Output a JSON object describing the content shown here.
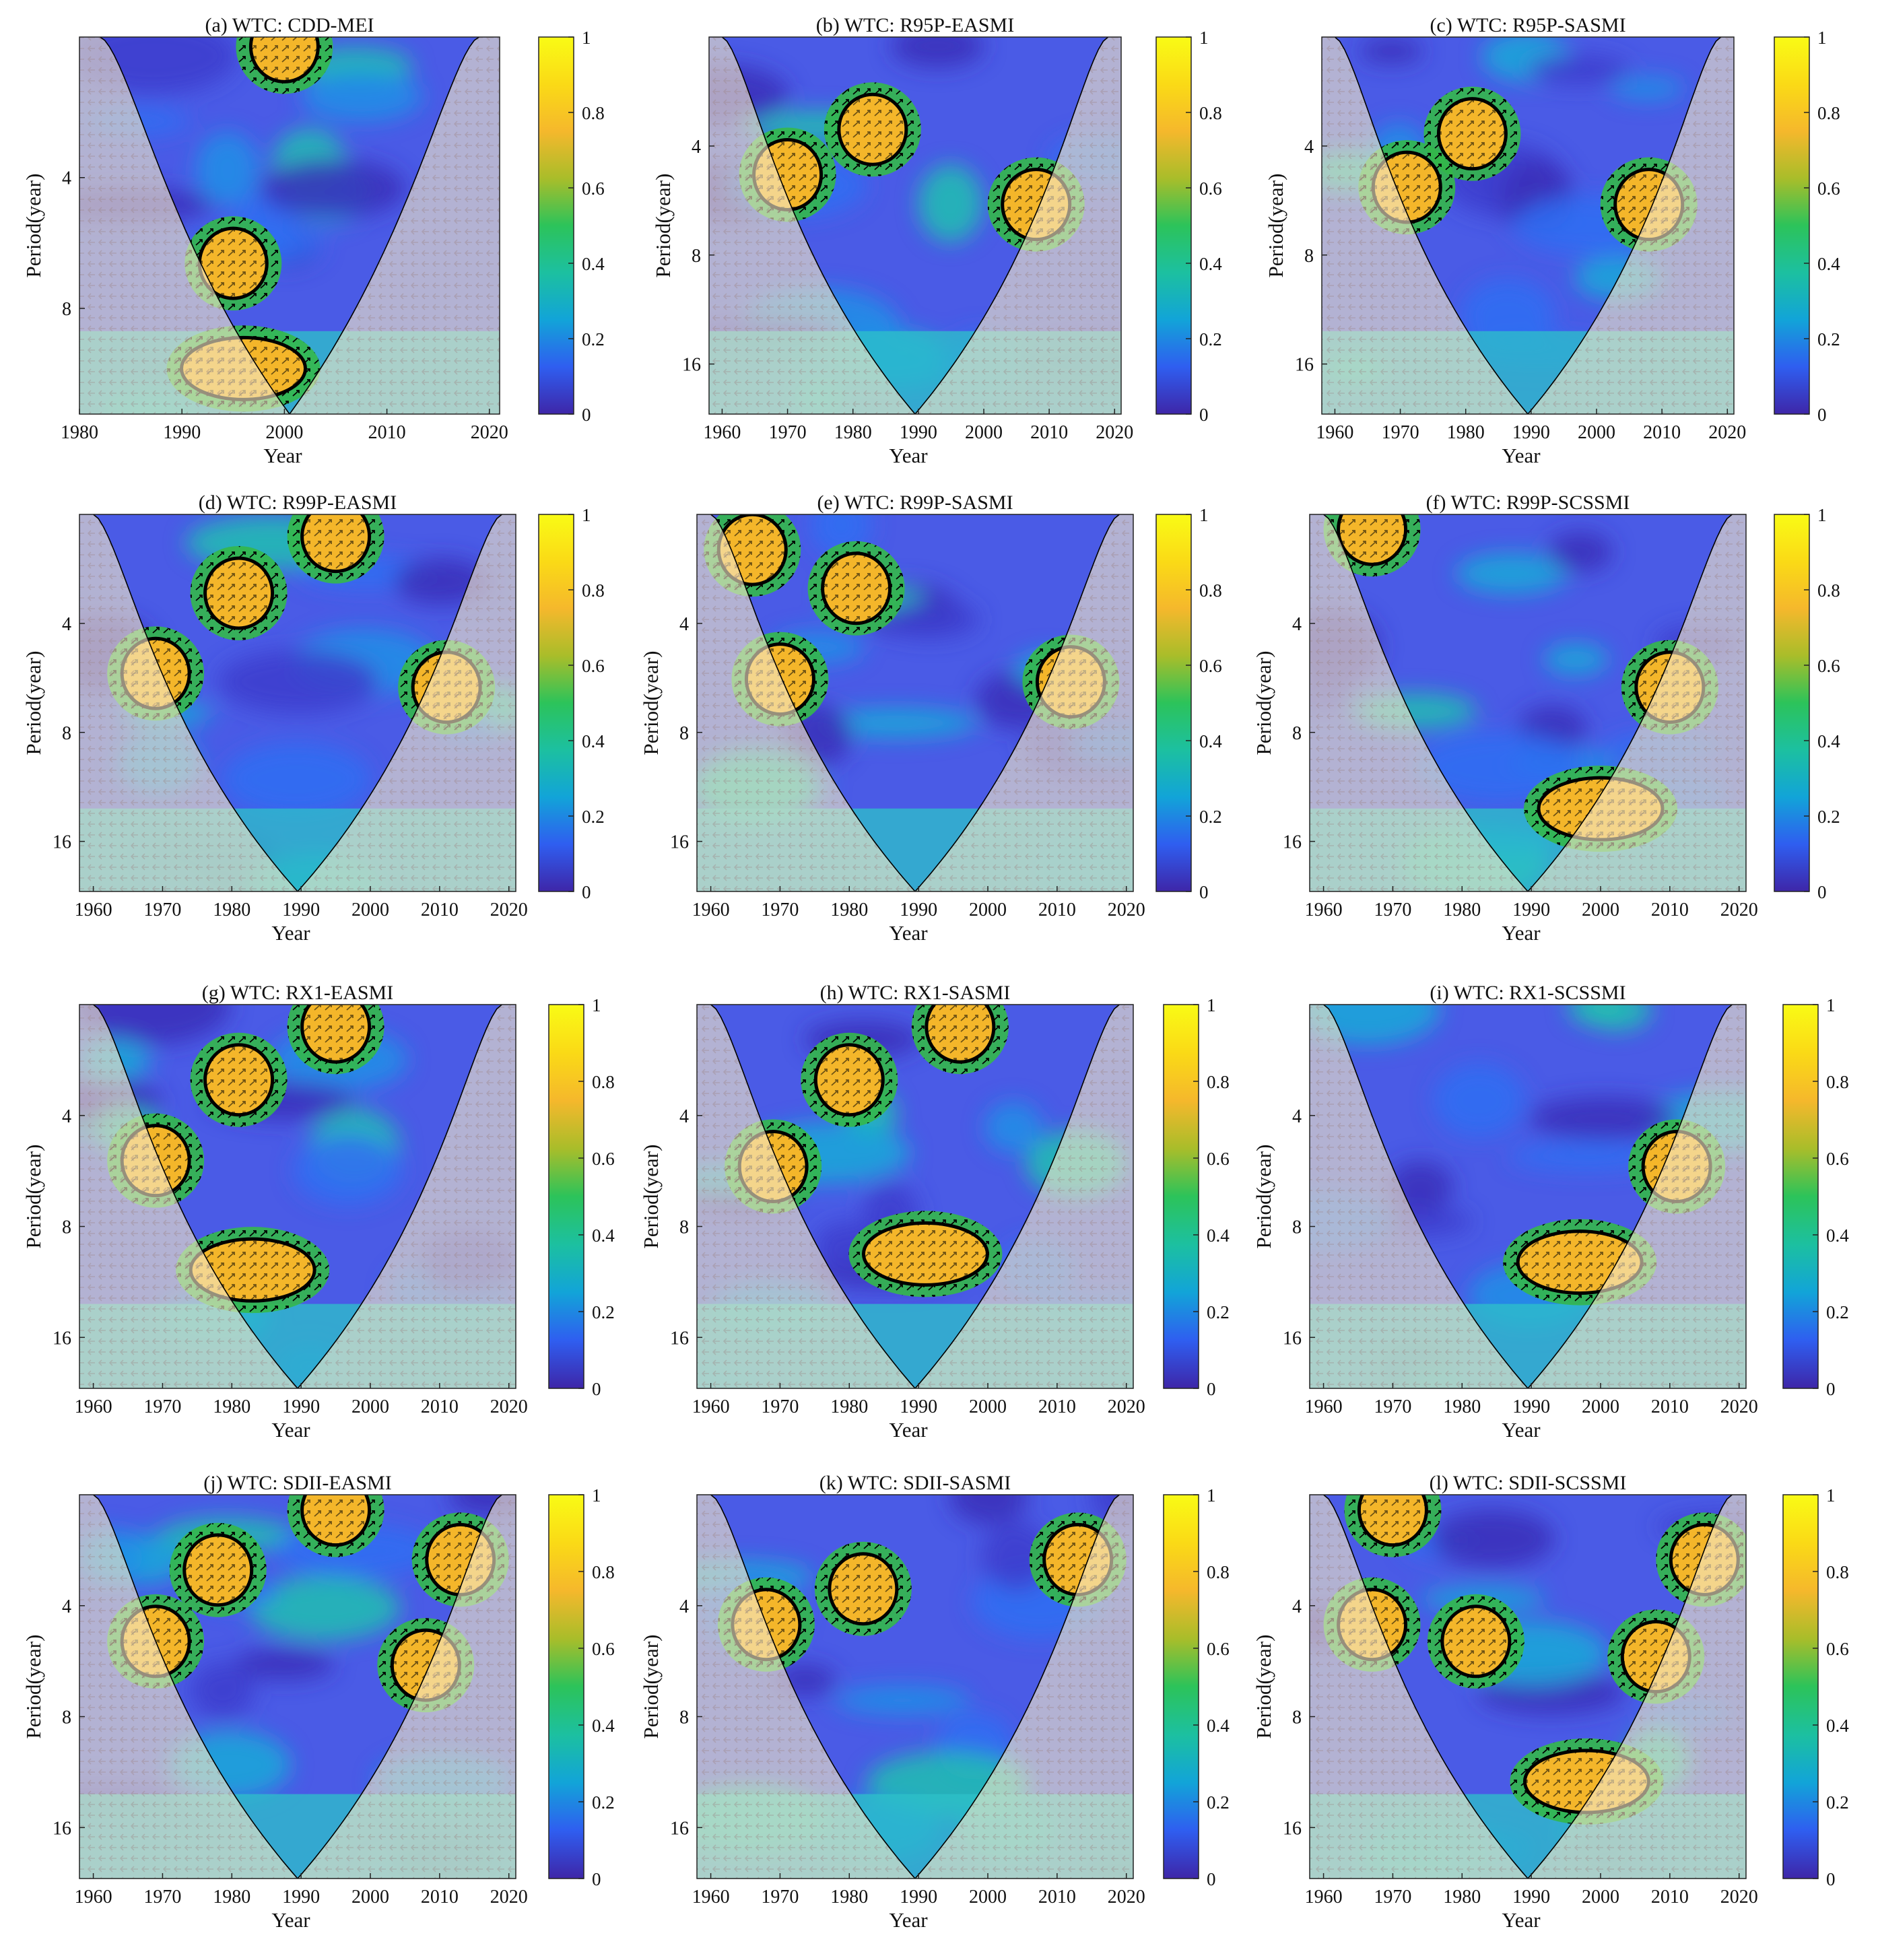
{
  "figure": {
    "colorbar_ticks": [
      "0",
      "0.2",
      "0.4",
      "0.6",
      "0.8",
      "1"
    ],
    "colormap": [
      "#3e26a8",
      "#2f5ef0",
      "#12a4d8",
      "#1cc0a0",
      "#2cc35a",
      "#a9bd2a",
      "#f5b82c",
      "#fada16",
      "#f9fb15"
    ],
    "coi_shade_color": "#f3e9c6",
    "significance_contour_color": "#000000",
    "coi_contour_color": "#888888"
  },
  "chart_data": [
    {
      "id": "a",
      "type": "heatmap",
      "title": "(a) WTC: CDD-MEI",
      "xlabel": "Year",
      "ylabel": "Period(year)",
      "xlim": [
        1980,
        2021
      ],
      "xticks": [
        "1980",
        "1990",
        "2000",
        "2010",
        "2020"
      ],
      "yticks": [
        "4",
        "8"
      ],
      "ylim_period": [
        1.9,
        14
      ],
      "clim": [
        0,
        1
      ],
      "significant_regions": [
        {
          "year": 1995,
          "period": 6.3
        },
        {
          "year": 1996,
          "period": 11
        },
        {
          "year": 2000,
          "period": 2
        }
      ]
    },
    {
      "id": "b",
      "type": "heatmap",
      "title": "(b) WTC: R95P-EASMI",
      "xlabel": "Year",
      "ylabel": "Period(year)",
      "xlim": [
        1958,
        2021
      ],
      "xticks": [
        "1960",
        "1970",
        "1980",
        "1990",
        "2000",
        "2010",
        "2020"
      ],
      "yticks": [
        "4",
        "8",
        "16"
      ],
      "ylim_period": [
        2,
        22
      ],
      "clim": [
        0,
        1
      ],
      "significant_regions": [
        {
          "year": 1970,
          "period": 4.8
        },
        {
          "year": 1983,
          "period": 3.6
        },
        {
          "year": 2008,
          "period": 5.8
        }
      ]
    },
    {
      "id": "c",
      "type": "heatmap",
      "title": "(c) WTC: R95P-SASMI",
      "xlabel": "Year",
      "ylabel": "Period(year)",
      "xlim": [
        1958,
        2021
      ],
      "xticks": [
        "1960",
        "1970",
        "1980",
        "1990",
        "2000",
        "2010",
        "2020"
      ],
      "yticks": [
        "4",
        "8",
        "16"
      ],
      "ylim_period": [
        2,
        22
      ],
      "clim": [
        0,
        1
      ],
      "significant_regions": [
        {
          "year": 1971,
          "period": 5.2
        },
        {
          "year": 1981,
          "period": 3.7
        },
        {
          "year": 2008,
          "period": 5.8
        }
      ]
    },
    {
      "id": "d",
      "type": "heatmap",
      "title": "(d) WTC: R99P-EASMI",
      "xlabel": "Year",
      "ylabel": "Period(year)",
      "xlim": [
        1958,
        2021
      ],
      "xticks": [
        "1960",
        "1970",
        "1980",
        "1990",
        "2000",
        "2010",
        "2020"
      ],
      "yticks": [
        "4",
        "8",
        "16"
      ],
      "ylim_period": [
        2,
        22
      ],
      "clim": [
        0,
        1
      ],
      "significant_regions": [
        {
          "year": 1969,
          "period": 5.5
        },
        {
          "year": 1981,
          "period": 3.3
        },
        {
          "year": 1995,
          "period": 2.3
        },
        {
          "year": 2011,
          "period": 6
        }
      ]
    },
    {
      "id": "e",
      "type": "heatmap",
      "title": "(e) WTC: R99P-SASMI",
      "xlabel": "Year",
      "ylabel": "Period(year)",
      "xlim": [
        1958,
        2021
      ],
      "xticks": [
        "1960",
        "1970",
        "1980",
        "1990",
        "2000",
        "2010",
        "2020"
      ],
      "yticks": [
        "4",
        "8",
        "16"
      ],
      "ylim_period": [
        2,
        22
      ],
      "clim": [
        0,
        1
      ],
      "significant_regions": [
        {
          "year": 1966,
          "period": 2.5
        },
        {
          "year": 1970,
          "period": 5.7
        },
        {
          "year": 1981,
          "period": 3.2
        },
        {
          "year": 2012,
          "period": 5.8
        }
      ]
    },
    {
      "id": "f",
      "type": "heatmap",
      "title": "(f) WTC: R99P-SCSSMI",
      "xlabel": "Year",
      "ylabel": "Period(year)",
      "xlim": [
        1958,
        2021
      ],
      "xticks": [
        "1960",
        "1970",
        "1980",
        "1990",
        "2000",
        "2010",
        "2020"
      ],
      "yticks": [
        "4",
        "8",
        "16"
      ],
      "ylim_period": [
        2,
        22
      ],
      "clim": [
        0,
        1
      ],
      "significant_regions": [
        {
          "year": 1967,
          "period": 2.2
        },
        {
          "year": 2000,
          "period": 13
        },
        {
          "year": 2010,
          "period": 6
        }
      ]
    },
    {
      "id": "g",
      "type": "heatmap",
      "title": "(g) WTC: RX1-EASMI",
      "xlabel": "Year",
      "ylabel": "Period(year)",
      "xlim": [
        1958,
        2021
      ],
      "xticks": [
        "1960",
        "1970",
        "1980",
        "1990",
        "2000",
        "2010",
        "2020"
      ],
      "yticks": [
        "4",
        "8",
        "16"
      ],
      "ylim_period": [
        2,
        22
      ],
      "clim": [
        0,
        1
      ],
      "significant_regions": [
        {
          "year": 1969,
          "period": 5.3
        },
        {
          "year": 1981,
          "period": 3.2
        },
        {
          "year": 1995,
          "period": 2.3
        },
        {
          "year": 1983,
          "period": 10.5
        }
      ]
    },
    {
      "id": "h",
      "type": "heatmap",
      "title": "(h) WTC: RX1-SASMI",
      "xlabel": "Year",
      "ylabel": "Period(year)",
      "xlim": [
        1958,
        2021
      ],
      "xticks": [
        "1960",
        "1970",
        "1980",
        "1990",
        "2000",
        "2010",
        "2020"
      ],
      "yticks": [
        "4",
        "8",
        "16"
      ],
      "ylim_period": [
        2,
        22
      ],
      "clim": [
        0,
        1
      ],
      "significant_regions": [
        {
          "year": 1969,
          "period": 5.5
        },
        {
          "year": 1980,
          "period": 3.2
        },
        {
          "year": 1991,
          "period": 9.5
        },
        {
          "year": 1996,
          "period": 2.3
        }
      ]
    },
    {
      "id": "i",
      "type": "heatmap",
      "title": "(i) WTC: RX1-SCSSMI",
      "xlabel": "Year",
      "ylabel": "Period(year)",
      "xlim": [
        1958,
        2021
      ],
      "xticks": [
        "1960",
        "1970",
        "1980",
        "1990",
        "2000",
        "2010",
        "2020"
      ],
      "yticks": [
        "4",
        "8",
        "16"
      ],
      "ylim_period": [
        2,
        22
      ],
      "clim": [
        0,
        1
      ],
      "significant_regions": [
        {
          "year": 1997,
          "period": 10
        },
        {
          "year": 2011,
          "period": 5.5
        }
      ]
    },
    {
      "id": "j",
      "type": "heatmap",
      "title": "(j) WTC: SDII-EASMI",
      "xlabel": "Year",
      "ylabel": "Period(year)",
      "xlim": [
        1958,
        2021
      ],
      "xticks": [
        "1960",
        "1970",
        "1980",
        "1990",
        "2000",
        "2010",
        "2020"
      ],
      "yticks": [
        "4",
        "8",
        "16"
      ],
      "ylim_period": [
        2,
        22
      ],
      "clim": [
        0,
        1
      ],
      "significant_regions": [
        {
          "year": 1969,
          "period": 5
        },
        {
          "year": 1978,
          "period": 3.2
        },
        {
          "year": 1995,
          "period": 2.2
        },
        {
          "year": 2008,
          "period": 5.8
        },
        {
          "year": 2013,
          "period": 3
        }
      ]
    },
    {
      "id": "k",
      "type": "heatmap",
      "title": "(k) WTC: SDII-SASMI",
      "xlabel": "Year",
      "ylabel": "Period(year)",
      "xlim": [
        1958,
        2021
      ],
      "xticks": [
        "1960",
        "1970",
        "1980",
        "1990",
        "2000",
        "2010",
        "2020"
      ],
      "yticks": [
        "4",
        "8",
        "16"
      ],
      "ylim_period": [
        2,
        22
      ],
      "clim": [
        0,
        1
      ],
      "significant_regions": [
        {
          "year": 1968,
          "period": 4.5
        },
        {
          "year": 1982,
          "period": 3.6
        },
        {
          "year": 2013,
          "period": 3
        }
      ]
    },
    {
      "id": "l",
      "type": "heatmap",
      "title": "(l) WTC: SDII-SCSSMI",
      "xlabel": "Year",
      "ylabel": "Period(year)",
      "xlim": [
        1958,
        2021
      ],
      "xticks": [
        "1960",
        "1970",
        "1980",
        "1990",
        "2000",
        "2010",
        "2020"
      ],
      "yticks": [
        "4",
        "8",
        "16"
      ],
      "ylim_period": [
        2,
        22
      ],
      "clim": [
        0,
        1
      ],
      "significant_regions": [
        {
          "year": 1967,
          "period": 4.5
        },
        {
          "year": 1982,
          "period": 5
        },
        {
          "year": 1970,
          "period": 2.2
        },
        {
          "year": 2008,
          "period": 5.5
        },
        {
          "year": 1998,
          "period": 12
        },
        {
          "year": 2015,
          "period": 3
        }
      ]
    }
  ]
}
